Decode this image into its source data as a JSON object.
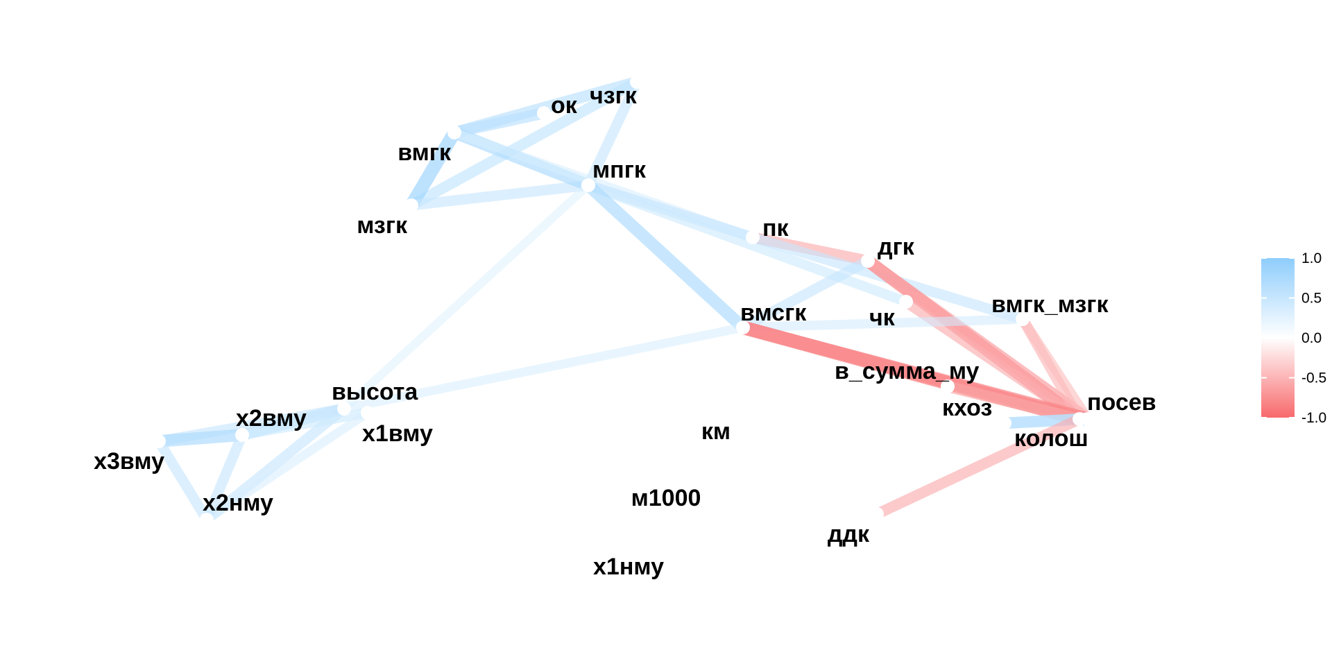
{
  "chart_data": {
    "type": "network",
    "title": "",
    "nodes": [
      {
        "id": "ок",
        "label": "ок"
      },
      {
        "id": "чзгк",
        "label": "чзгк"
      },
      {
        "id": "вмгк",
        "label": "вмгк"
      },
      {
        "id": "мпгк",
        "label": "мпгк"
      },
      {
        "id": "мзгк",
        "label": "мзгк"
      },
      {
        "id": "пк",
        "label": "пк"
      },
      {
        "id": "дгк",
        "label": "дгк"
      },
      {
        "id": "чк",
        "label": "чк"
      },
      {
        "id": "вмгк_мзгк",
        "label": "вмгк_мзгк"
      },
      {
        "id": "вмсгк",
        "label": "вмсгк"
      },
      {
        "id": "в_сумма_му",
        "label": "в_сумма_му"
      },
      {
        "id": "кхоз",
        "label": "кхоз"
      },
      {
        "id": "посев",
        "label": "посев"
      },
      {
        "id": "колош",
        "label": "колош"
      },
      {
        "id": "ддк",
        "label": "ддк"
      },
      {
        "id": "высота",
        "label": "высота"
      },
      {
        "id": "х2вму",
        "label": "х2вму"
      },
      {
        "id": "х1вму",
        "label": "х1вму"
      },
      {
        "id": "х3вму",
        "label": "х3вму"
      },
      {
        "id": "х2нму",
        "label": "х2нму"
      },
      {
        "id": "км",
        "label": "км"
      },
      {
        "id": "м1000",
        "label": "м1000"
      },
      {
        "id": "х1нму",
        "label": "х1нму"
      }
    ],
    "edges": [
      {
        "source": "вмгк",
        "target": "ок",
        "r": 0.6
      },
      {
        "source": "вмгк",
        "target": "чзгк",
        "r": 0.6
      },
      {
        "source": "мзгк",
        "target": "чзгк",
        "r": 0.55
      },
      {
        "source": "мпгк",
        "target": "чзгк",
        "r": 0.5
      },
      {
        "source": "вмгк",
        "target": "мзгк",
        "r": 0.8
      },
      {
        "source": "мзгк",
        "target": "мпгк",
        "r": 0.5
      },
      {
        "source": "вмгк",
        "target": "мпгк",
        "r": 0.7
      },
      {
        "source": "вмгк",
        "target": "пк",
        "r": 0.35
      },
      {
        "source": "мпгк",
        "target": "пк",
        "r": 0.5
      },
      {
        "source": "мпгк",
        "target": "чк",
        "r": 0.45
      },
      {
        "source": "мпгк",
        "target": "вмсгк",
        "r": 0.7
      },
      {
        "source": "мпгк",
        "target": "высота",
        "r": 0.3
      },
      {
        "source": "пк",
        "target": "дгк",
        "r": -0.55
      },
      {
        "source": "пк",
        "target": "вмгк_мзгк",
        "r": 0.5
      },
      {
        "source": "дгк",
        "target": "посев",
        "r": -0.75
      },
      {
        "source": "дгк",
        "target": "колош",
        "r": -0.65
      },
      {
        "source": "дгк",
        "target": "вмсгк",
        "r": 0.5
      },
      {
        "source": "чк",
        "target": "посев",
        "r": -0.55
      },
      {
        "source": "вмгк_мзгк",
        "target": "посев",
        "r": -0.5
      },
      {
        "source": "вмгк_мзгк",
        "target": "колош",
        "r": -0.45
      },
      {
        "source": "вмсгк",
        "target": "вмгк_мзгк",
        "r": 0.4
      },
      {
        "source": "вмсгк",
        "target": "посев",
        "r": -0.85
      },
      {
        "source": "вмсгк",
        "target": "колош",
        "r": -0.8
      },
      {
        "source": "вмсгк",
        "target": "высота",
        "r": 0.35
      },
      {
        "source": "в_сумма_му",
        "target": "посев",
        "r": -0.6
      },
      {
        "source": "кхоз",
        "target": "посев",
        "r": 0.6
      },
      {
        "source": "кхоз",
        "target": "колош",
        "r": 0.6
      },
      {
        "source": "посев",
        "target": "колош",
        "r": 0.75
      },
      {
        "source": "ддк",
        "target": "посев",
        "r": -0.55
      },
      {
        "source": "высота",
        "target": "х2вму",
        "r": 0.6
      },
      {
        "source": "высота",
        "target": "х3вму",
        "r": 0.5
      },
      {
        "source": "высота",
        "target": "х2нму",
        "r": 0.5
      },
      {
        "source": "х1вму",
        "target": "х2вму",
        "r": 0.45
      },
      {
        "source": "х1вму",
        "target": "х2нму",
        "r": 0.35
      },
      {
        "source": "х2вму",
        "target": "х3вму",
        "r": 0.7
      },
      {
        "source": "х2вму",
        "target": "х2нму",
        "r": 0.5
      },
      {
        "source": "х3вму",
        "target": "х2нму",
        "r": 0.5
      }
    ],
    "legend": {
      "position": "right",
      "ticks": [
        "1.0",
        "0.5",
        "0.0",
        "-0.5",
        "-1.0"
      ],
      "range": [
        -1,
        1
      ],
      "low_color": "#f8696b",
      "mid_color": "#ffffff",
      "high_color": "#8ecdfc"
    }
  }
}
